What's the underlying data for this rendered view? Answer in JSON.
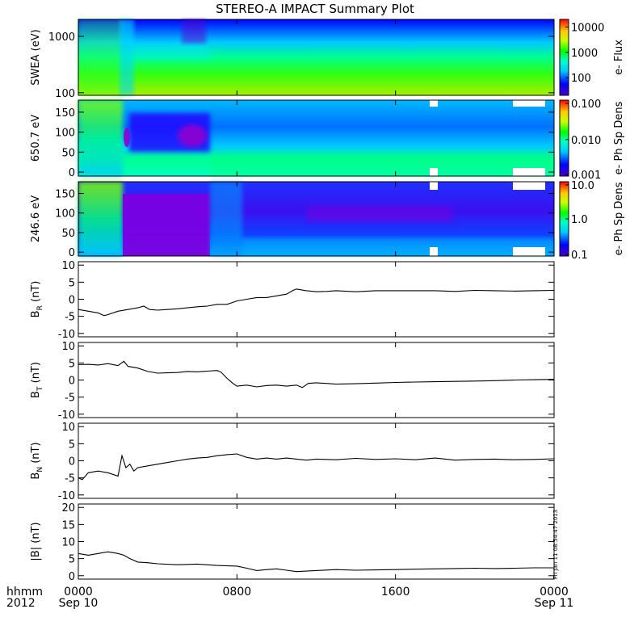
{
  "title": "STEREO-A IMPACT Summary Plot",
  "stamp": "Fri Jan 11 08:54:47 2013",
  "time_axis": {
    "label_line1": "hhmm",
    "label_line2": "2012",
    "ticks": [
      {
        "hour": 0,
        "label": "0000",
        "sub": "Sep 10"
      },
      {
        "hour": 8,
        "label": "0800",
        "sub": ""
      },
      {
        "hour": 16,
        "label": "1600",
        "sub": ""
      },
      {
        "hour": 24,
        "label": "0000",
        "sub": "Sep 11"
      }
    ]
  },
  "chart_data": [
    {
      "type": "heatmap",
      "ylabel": "SWEA (eV)",
      "yscale": "log",
      "ylim": [
        90,
        2000
      ],
      "yticks": [
        {
          "v": 1000,
          "label": "1000"
        },
        {
          "v": 100,
          "label": "100"
        }
      ],
      "colorbar": {
        "label": "e- Flux",
        "scale": "log",
        "ticks": [
          {
            "v": 10000,
            "label": "10000"
          },
          {
            "v": 1000,
            "label": "1000"
          },
          {
            "v": 100,
            "label": "100"
          }
        ],
        "range": [
          20,
          20000
        ]
      }
    },
    {
      "type": "heatmap",
      "ylabel": "650.7 eV",
      "ylim": [
        -10,
        180
      ],
      "yticks": [
        {
          "v": 150,
          "label": "150"
        },
        {
          "v": 100,
          "label": "100"
        },
        {
          "v": 50,
          "label": "50"
        },
        {
          "v": 0,
          "label": "0"
        }
      ],
      "colorbar": {
        "label": "e- Ph Sp Dens",
        "scale": "log",
        "ticks": [
          {
            "v": 0.1,
            "label": "0.100"
          },
          {
            "v": 0.01,
            "label": "0.010"
          },
          {
            "v": 0.001,
            "label": "0.001"
          }
        ],
        "range": [
          0.001,
          0.12
        ]
      }
    },
    {
      "type": "heatmap",
      "ylabel": "246.6 eV",
      "ylim": [
        -10,
        180
      ],
      "yticks": [
        {
          "v": 150,
          "label": "150"
        },
        {
          "v": 100,
          "label": "100"
        },
        {
          "v": 50,
          "label": "50"
        },
        {
          "v": 0,
          "label": "0"
        }
      ],
      "colorbar": {
        "label": "e- Ph Sp Dens",
        "scale": "log",
        "ticks": [
          {
            "v": 10,
            "label": "10.0"
          },
          {
            "v": 1,
            "label": "1.0"
          },
          {
            "v": 0.1,
            "label": "0.1"
          }
        ],
        "range": [
          0.1,
          10
        ]
      }
    },
    {
      "type": "line",
      "ylabel": "B",
      "ylabel_sub": "R",
      "ylabel_unit": "(nT)",
      "ylim": [
        -11,
        11
      ],
      "yticks": [
        10,
        5,
        0,
        -5,
        -10
      ],
      "x": [
        0,
        0.5,
        1,
        1.3,
        1.5,
        2,
        2.5,
        3,
        3.3,
        3.6,
        4,
        4.5,
        5,
        5.5,
        6,
        6.5,
        7,
        7.5,
        8,
        8.5,
        9,
        9.5,
        10,
        10.5,
        10.8,
        11,
        11.5,
        12,
        12.5,
        13,
        14,
        15,
        16,
        17,
        18,
        19,
        20,
        21,
        22,
        23,
        24
      ],
      "y": [
        -3,
        -3.5,
        -4,
        -4.8,
        -4.5,
        -3.5,
        -3,
        -2.5,
        -2,
        -3,
        -3.2,
        -3,
        -2.8,
        -2.5,
        -2.2,
        -2,
        -1.5,
        -1.5,
        -0.5,
        0,
        0.5,
        0.5,
        1,
        1.5,
        2.5,
        3,
        2.5,
        2.2,
        2.3,
        2.5,
        2.2,
        2.5,
        2.5,
        2.5,
        2.5,
        2.3,
        2.6,
        2.5,
        2.4,
        2.5,
        2.6
      ]
    },
    {
      "type": "line",
      "ylabel": "B",
      "ylabel_sub": "T",
      "ylabel_unit": "(nT)",
      "ylim": [
        -11,
        11
      ],
      "yticks": [
        10,
        5,
        0,
        -5,
        -10
      ],
      "x": [
        0,
        0.5,
        1,
        1.5,
        2,
        2.3,
        2.5,
        3,
        3.5,
        4,
        4.5,
        5,
        5.5,
        6,
        6.5,
        7,
        7.2,
        7.5,
        7.8,
        8,
        8.5,
        9,
        9.5,
        10,
        10.5,
        11,
        11.3,
        11.6,
        12,
        12.5,
        13,
        14,
        15,
        16,
        17,
        18,
        19,
        20,
        21,
        22,
        23,
        24
      ],
      "y": [
        4.5,
        4.6,
        4.4,
        4.8,
        4.2,
        5.5,
        4,
        3.5,
        2.5,
        2,
        2.1,
        2.2,
        2.5,
        2.4,
        2.6,
        2.8,
        2.3,
        0.5,
        -1,
        -1.8,
        -1.5,
        -2,
        -1.6,
        -1.5,
        -1.8,
        -1.5,
        -2.2,
        -1,
        -0.8,
        -1,
        -1.2,
        -1.1,
        -0.9,
        -0.7,
        -0.6,
        -0.5,
        -0.4,
        -0.3,
        -0.2,
        0,
        0.1,
        0.2
      ]
    },
    {
      "type": "line",
      "ylabel": "B",
      "ylabel_sub": "N",
      "ylabel_unit": "(nT)",
      "ylim": [
        -11,
        11
      ],
      "yticks": [
        10,
        5,
        0,
        -5,
        -10
      ],
      "x": [
        0,
        0.2,
        0.5,
        1,
        1.5,
        2,
        2.2,
        2.4,
        2.6,
        2.8,
        3,
        3.5,
        4,
        4.5,
        5,
        5.5,
        6,
        6.5,
        7,
        7.5,
        8,
        8.5,
        9,
        9.5,
        10,
        10.5,
        11,
        11.5,
        12,
        13,
        14,
        15,
        16,
        17,
        18,
        19,
        20,
        21,
        22,
        23,
        24
      ],
      "y": [
        -5,
        -5.5,
        -3.5,
        -3,
        -3.5,
        -4.5,
        1.5,
        -2,
        -1,
        -3,
        -2,
        -1.5,
        -1,
        -0.5,
        0,
        0.5,
        0.8,
        1,
        1.5,
        1.8,
        2,
        1,
        0.5,
        0.8,
        0.5,
        0.8,
        0.5,
        0.2,
        0.5,
        0.3,
        0.7,
        0.4,
        0.6,
        0.3,
        0.8,
        0.2,
        0.4,
        0.5,
        0.3,
        0.4,
        0.6
      ]
    },
    {
      "type": "line",
      "ylabel": "|B|",
      "ylabel_unit": "(nT)",
      "ylim": [
        -1,
        21
      ],
      "yticks": [
        20,
        15,
        10,
        5,
        0
      ],
      "x": [
        0,
        0.5,
        1,
        1.5,
        2,
        2.3,
        2.6,
        3,
        3.5,
        4,
        5,
        6,
        7,
        8,
        8.5,
        9,
        9.5,
        10,
        10.5,
        11,
        12,
        13,
        14,
        15,
        16,
        17,
        18,
        19,
        20,
        21,
        22,
        23,
        24
      ],
      "y": [
        6.5,
        6,
        6.5,
        7,
        6.5,
        6,
        5,
        4,
        3.8,
        3.5,
        3.2,
        3.4,
        3,
        2.8,
        2.2,
        1.5,
        1.8,
        2,
        1.6,
        1.2,
        1.5,
        1.8,
        1.6,
        1.7,
        1.8,
        1.9,
        2,
        2.1,
        2.2,
        2.1,
        2.2,
        2.3,
        2.3
      ]
    }
  ]
}
